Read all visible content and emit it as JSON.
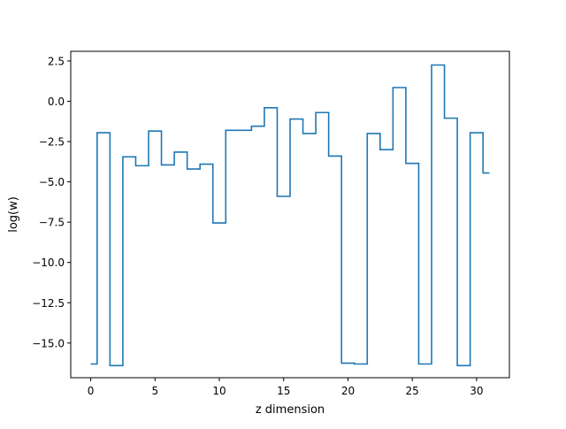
{
  "chart_data": {
    "type": "line",
    "drawstyle": "steps-mid",
    "title": "",
    "xlabel": "z dimension",
    "ylabel": "log(w)",
    "xlim": [
      -1.55,
      32.55
    ],
    "ylim": [
      -17.15,
      3.1
    ],
    "x_ticks": [
      0,
      5,
      10,
      15,
      20,
      25,
      30
    ],
    "x_tick_labels": [
      "0",
      "5",
      "10",
      "15",
      "20",
      "25",
      "30"
    ],
    "y_ticks": [
      2.5,
      0.0,
      -2.5,
      -5.0,
      -7.5,
      -10.0,
      -12.5,
      -15.0
    ],
    "y_tick_labels": [
      "2.5",
      "0.0",
      "−2.5",
      "−5.0",
      "−7.5",
      "−10.0",
      "−12.5",
      "−15.0"
    ],
    "grid": false,
    "series": [
      {
        "color": "#1f77b4",
        "x": [
          0,
          1,
          2,
          3,
          4,
          5,
          6,
          7,
          8,
          9,
          10,
          11,
          12,
          13,
          14,
          15,
          16,
          17,
          18,
          19,
          20,
          21,
          22,
          23,
          24,
          25,
          26,
          27,
          28,
          29,
          30,
          31
        ],
        "y": [
          -16.3,
          -1.95,
          -16.4,
          -3.45,
          -4.0,
          -1.85,
          -3.95,
          -3.15,
          -4.2,
          -3.9,
          -7.55,
          -1.8,
          -1.8,
          -1.55,
          -0.4,
          -5.9,
          -1.1,
          -2.0,
          -0.7,
          -3.4,
          -16.25,
          -16.3,
          -2.0,
          -3.0,
          0.85,
          -3.85,
          -16.3,
          2.25,
          -1.05,
          -16.4,
          -1.95,
          -4.45
        ]
      }
    ]
  }
}
